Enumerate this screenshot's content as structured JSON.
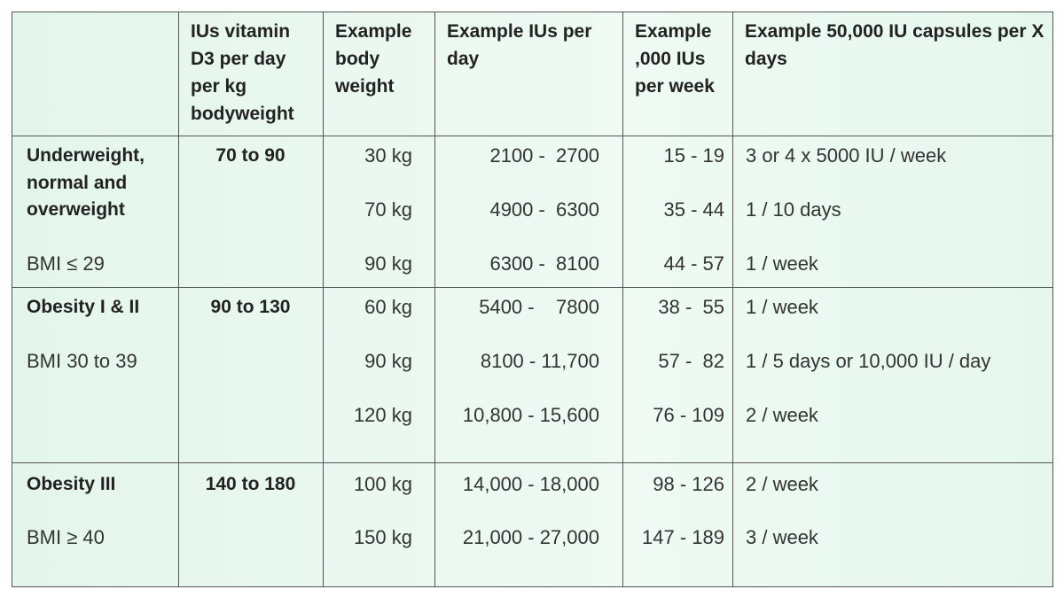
{
  "table": {
    "header": [
      "IUs vitamin D3 per day per kg bodyweight",
      "Example body weight",
      "Example IUs per day",
      "Example ,000 IUs per week",
      "Example 50,000 IU capsules per X days"
    ],
    "groups": [
      {
        "label": "Underweight, normal and overweight",
        "bmi": "BMI ≤ 29",
        "rate": "70 to 90",
        "rows": [
          [
            "30 kg",
            "2100 -  2700",
            "15 - 19",
            "3 or 4 x 5000 IU / week"
          ],
          [
            "70 kg",
            "4900 -  6300",
            "35 - 44",
            "1 / 10 days"
          ],
          [
            "90 kg",
            "6300 -  8100",
            "44 - 57",
            "1 / week"
          ]
        ]
      },
      {
        "label": "Obesity I & II",
        "bmi": "BMI 30 to 39",
        "rate": "90 to 130",
        "rows": [
          [
            "60 kg",
            "5400 -    7800",
            "38 -  55",
            "1 / week"
          ],
          [
            "90 kg",
            "8100 - 11,700",
            "57 -  82",
            "1 / 5 days or 10,000 IU / day"
          ],
          [
            "120 kg",
            "10,800 - 15,600",
            "76 - 109",
            "2 / week"
          ]
        ]
      },
      {
        "label": "Obesity III",
        "bmi": "BMI ≥ 40",
        "rate": "140 to 180",
        "rows": [
          [
            "100 kg",
            "14,000 - 18,000",
            "98 - 126",
            "2 / week"
          ],
          [
            "150 kg",
            "21,000 - 27,000",
            "147 - 189",
            "3 / week"
          ]
        ]
      }
    ]
  }
}
